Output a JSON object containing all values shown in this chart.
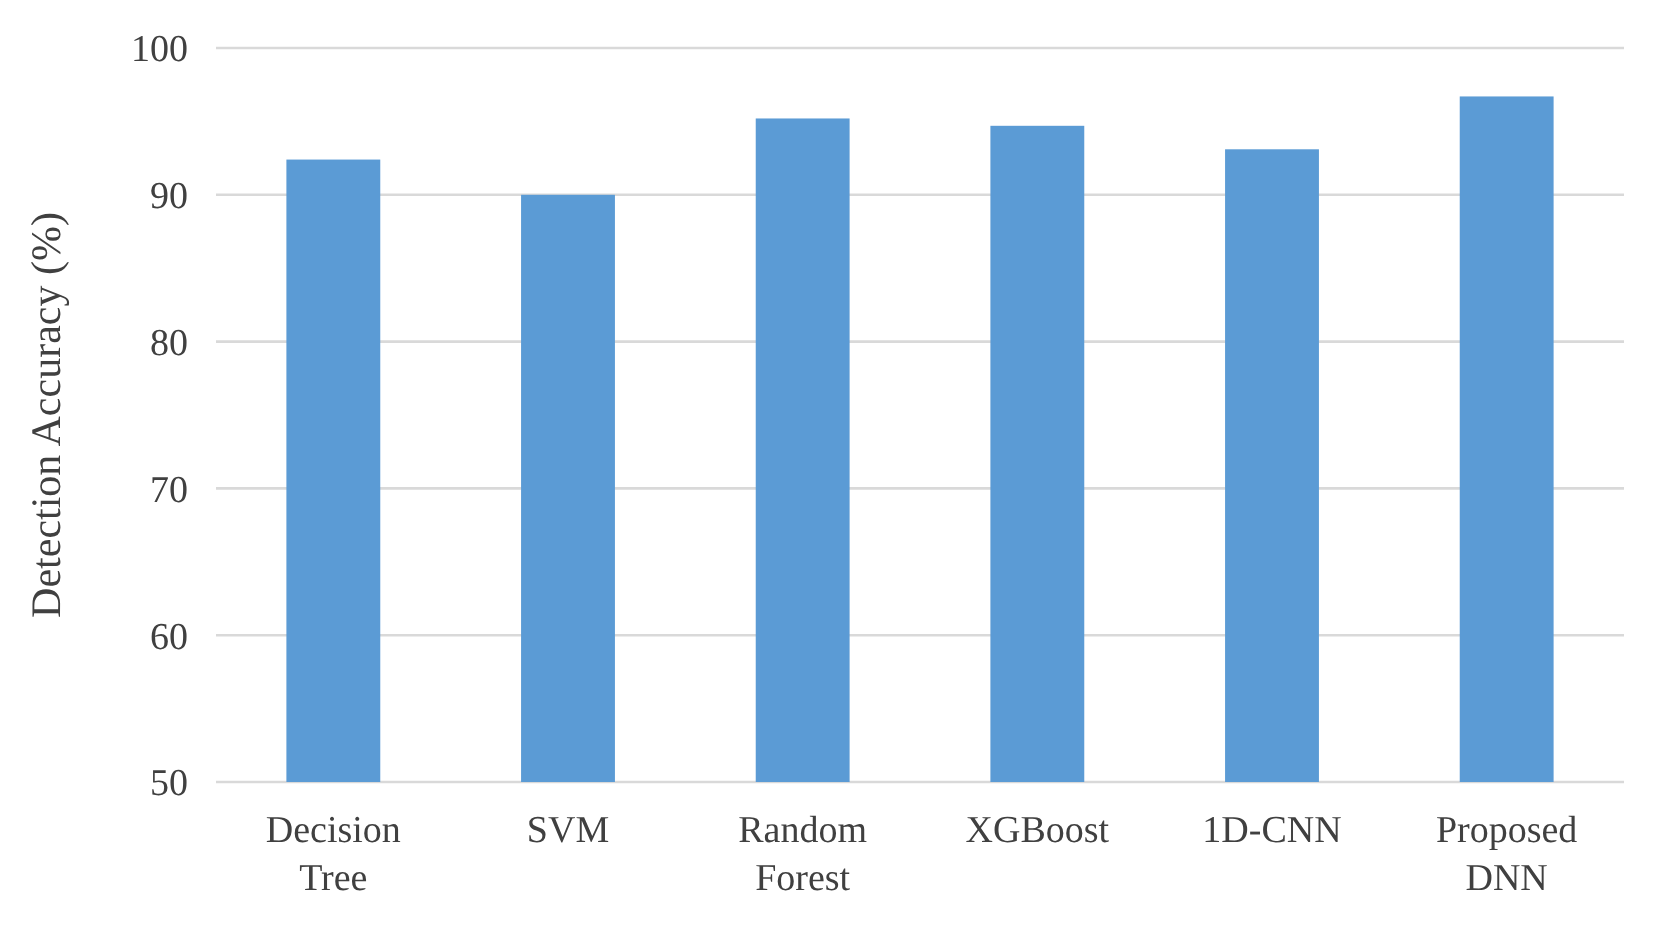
{
  "chart_data": {
    "type": "bar",
    "ylabel": "Detection Accuracy (%)",
    "categories": [
      "Decision Tree",
      "SVM",
      "Random Forest",
      "XGBoost",
      "1D-CNN",
      "Proposed DNN"
    ],
    "values": [
      92.4,
      90.0,
      95.2,
      94.7,
      93.1,
      96.7
    ],
    "color": "#5b9bd5",
    "ylim": [
      50,
      100
    ],
    "yticks": [
      50,
      60,
      70,
      80,
      90,
      100
    ],
    "grid": "y"
  }
}
